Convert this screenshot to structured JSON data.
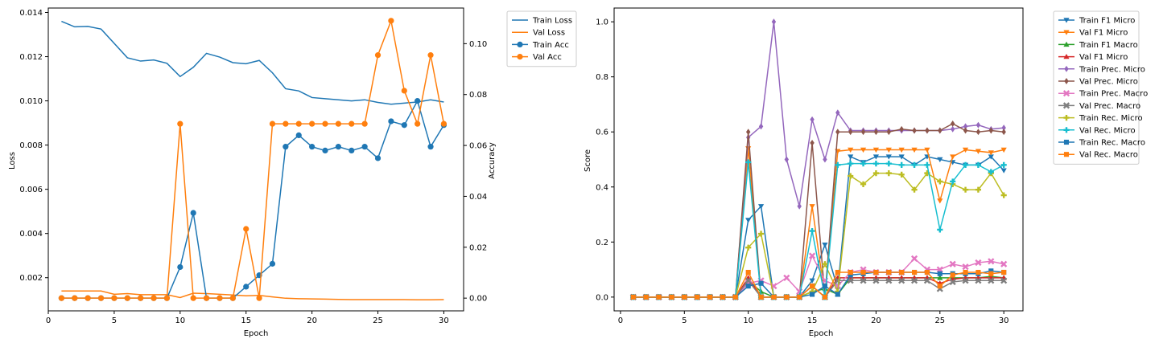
{
  "chart_data": [
    {
      "type": "line",
      "title": "",
      "xlabel": "Epoch",
      "ylabel": "Loss",
      "ylabel_right": "Accuracy",
      "xlim": [
        0.0,
        31.5
      ],
      "ylim": [
        0.0005,
        0.0142
      ],
      "ylim_right": [
        -0.005,
        0.114
      ],
      "x_ticks": [
        0,
        5,
        10,
        15,
        20,
        25,
        30
      ],
      "y_ticks": [
        0.002,
        0.004,
        0.006,
        0.008,
        0.01,
        0.012,
        0.014
      ],
      "y_ticks_right": [
        0.0,
        0.02,
        0.04,
        0.06,
        0.08,
        0.1
      ],
      "grid": false,
      "legend_placement": "outside-top-right",
      "x": [
        1,
        2,
        3,
        4,
        5,
        6,
        7,
        8,
        9,
        10,
        11,
        12,
        13,
        14,
        15,
        16,
        17,
        18,
        19,
        20,
        21,
        22,
        23,
        24,
        25,
        26,
        27,
        28,
        29,
        30
      ],
      "series": [
        {
          "name": "Train Loss",
          "axis": "left",
          "marker": "none",
          "color": "#1f77b4",
          "values": [
            0.0136,
            0.01335,
            0.01337,
            0.01325,
            0.0126,
            0.01195,
            0.0118,
            0.01185,
            0.0117,
            0.0111,
            0.01152,
            0.01215,
            0.01198,
            0.01173,
            0.01168,
            0.01183,
            0.01127,
            0.01055,
            0.01045,
            0.01015,
            0.0101,
            0.01005,
            0.01,
            0.01005,
            0.00993,
            0.00985,
            0.0099,
            0.00995,
            0.01005,
            0.00995
          ]
        },
        {
          "name": "Val Loss",
          "axis": "left",
          "marker": "none",
          "color": "#ff7f0e",
          "values": [
            0.0014,
            0.0014,
            0.0014,
            0.0014,
            0.00125,
            0.00128,
            0.00123,
            0.00123,
            0.00123,
            0.0011,
            0.0013,
            0.00128,
            0.00125,
            0.00122,
            0.00118,
            0.0012,
            0.00113,
            0.00107,
            0.00105,
            0.00104,
            0.00103,
            0.00102,
            0.00101,
            0.00101,
            0.00101,
            0.00101,
            0.00101,
            0.001,
            0.001,
            0.00101
          ]
        },
        {
          "name": "Train Acc",
          "axis": "right",
          "marker": "circle",
          "color": "#1f77b4",
          "values": [
            0,
            0,
            0,
            0,
            0,
            0,
            0,
            0,
            0,
            0.0122,
            0.0335,
            0,
            0,
            0,
            0.0045,
            0.009,
            0.0135,
            0.0595,
            0.064,
            0.0595,
            0.058,
            0.0595,
            0.058,
            0.0595,
            0.055,
            0.0695,
            0.068,
            0.0775,
            0.0595,
            0.068
          ]
        },
        {
          "name": "Val Acc",
          "axis": "right",
          "marker": "circle",
          "color": "#ff7f0e",
          "values": [
            0,
            0,
            0,
            0,
            0,
            0,
            0,
            0,
            0,
            0.0685,
            0,
            0,
            0,
            0,
            0.0272,
            0,
            0.0685,
            0.0685,
            0.0685,
            0.0685,
            0.0685,
            0.0685,
            0.0685,
            0.0685,
            0.0955,
            0.109,
            0.0815,
            0.0685,
            0.0955,
            0.0685
          ]
        }
      ]
    },
    {
      "type": "line",
      "title": "",
      "xlabel": "Epoch",
      "ylabel": "Score",
      "xlim": [
        -0.5,
        31.5
      ],
      "ylim": [
        -0.05,
        1.05
      ],
      "x_ticks": [
        0,
        5,
        10,
        15,
        20,
        25,
        30
      ],
      "y_ticks": [
        0.0,
        0.2,
        0.4,
        0.6,
        0.8,
        1.0
      ],
      "grid": false,
      "legend_placement": "outside-top-right",
      "x": [
        1,
        2,
        3,
        4,
        5,
        6,
        7,
        8,
        9,
        10,
        11,
        12,
        13,
        14,
        15,
        16,
        17,
        18,
        19,
        20,
        21,
        22,
        23,
        24,
        25,
        26,
        27,
        28,
        29,
        30
      ],
      "series": [
        {
          "name": "Train F1 Micro",
          "marker": "tri_down",
          "color": "#1f77b4",
          "values": [
            0,
            0,
            0,
            0,
            0,
            0,
            0,
            0,
            0,
            0.28,
            0.33,
            0,
            0,
            0,
            0.06,
            0.19,
            0.03,
            0.51,
            0.49,
            0.51,
            0.51,
            0.51,
            0.48,
            0.51,
            0.5,
            0.49,
            0.48,
            0.48,
            0.51,
            0.46
          ]
        },
        {
          "name": "Val F1 Micro",
          "marker": "tri_down",
          "color": "#ff7f0e",
          "values": [
            0,
            0,
            0,
            0,
            0,
            0,
            0,
            0,
            0,
            0.54,
            0,
            0,
            0,
            0,
            0.33,
            0,
            0.53,
            0.535,
            0.535,
            0.535,
            0.535,
            0.535,
            0.535,
            0.535,
            0.35,
            0.51,
            0.535,
            0.53,
            0.525,
            0.535
          ]
        },
        {
          "name": "Train F1 Macro",
          "marker": "tri_up",
          "color": "#2ca02c",
          "values": [
            0,
            0,
            0,
            0,
            0,
            0,
            0,
            0,
            0,
            0.06,
            0.02,
            0,
            0,
            0,
            0.02,
            0.03,
            0.01,
            0.07,
            0.07,
            0.07,
            0.07,
            0.07,
            0.07,
            0.07,
            0.07,
            0.07,
            0.07,
            0.07,
            0.075,
            0.07
          ]
        },
        {
          "name": "Val F1 Micro",
          "marker": "tri_up",
          "color": "#d62728",
          "values": [
            0,
            0,
            0,
            0,
            0,
            0,
            0,
            0,
            0,
            0.07,
            0,
            0,
            0,
            0,
            0.04,
            0,
            0.07,
            0.07,
            0.07,
            0.07,
            0.07,
            0.07,
            0.07,
            0.07,
            0.05,
            0.065,
            0.07,
            0.07,
            0.07,
            0.07
          ]
        },
        {
          "name": "Train Prec. Micro",
          "marker": "diamond",
          "color": "#9467bd",
          "values": [
            0,
            0,
            0,
            0,
            0,
            0,
            0,
            0,
            0,
            0.58,
            0.62,
            1.0,
            0.5,
            0.33,
            0.645,
            0.5,
            0.67,
            0.605,
            0.605,
            0.605,
            0.605,
            0.605,
            0.605,
            0.605,
            0.605,
            0.61,
            0.62,
            0.625,
            0.61,
            0.615
          ]
        },
        {
          "name": "Val Prec. Micro",
          "marker": "diamond",
          "color": "#8c564b",
          "values": [
            0,
            0,
            0,
            0,
            0,
            0,
            0,
            0,
            0,
            0.6,
            0,
            0,
            0,
            0,
            0.56,
            0,
            0.6,
            0.6,
            0.6,
            0.6,
            0.6,
            0.61,
            0.605,
            0.605,
            0.605,
            0.63,
            0.605,
            0.6,
            0.605,
            0.6
          ]
        },
        {
          "name": "Train Prec. Macro",
          "marker": "x",
          "color": "#e377c2",
          "values": [
            0,
            0,
            0,
            0,
            0,
            0,
            0,
            0,
            0,
            0.05,
            0.06,
            0.04,
            0.07,
            0.02,
            0.15,
            0.06,
            0.04,
            0.09,
            0.1,
            0.09,
            0.09,
            0.09,
            0.14,
            0.1,
            0.1,
            0.12,
            0.11,
            0.125,
            0.13,
            0.12
          ]
        },
        {
          "name": "Val Prec. Macro",
          "marker": "x",
          "color": "#7f7f7f",
          "values": [
            0,
            0,
            0,
            0,
            0,
            0,
            0,
            0,
            0,
            0.06,
            0,
            0,
            0,
            0,
            0.04,
            0,
            0.06,
            0.06,
            0.06,
            0.06,
            0.06,
            0.06,
            0.06,
            0.06,
            0.03,
            0.055,
            0.06,
            0.06,
            0.06,
            0.06
          ]
        },
        {
          "name": "Train Rec. Micro",
          "marker": "plus",
          "color": "#bcbd22",
          "values": [
            0,
            0,
            0,
            0,
            0,
            0,
            0,
            0,
            0,
            0.18,
            0.23,
            0,
            0,
            0,
            0.02,
            0.12,
            0.02,
            0.44,
            0.41,
            0.45,
            0.45,
            0.445,
            0.39,
            0.45,
            0.42,
            0.41,
            0.39,
            0.39,
            0.45,
            0.37
          ]
        },
        {
          "name": "Val Rec. Micro",
          "marker": "plus",
          "color": "#17becf",
          "values": [
            0,
            0,
            0,
            0,
            0,
            0,
            0,
            0,
            0,
            0.49,
            0,
            0,
            0,
            0,
            0.24,
            0,
            0.48,
            0.485,
            0.485,
            0.485,
            0.485,
            0.48,
            0.48,
            0.48,
            0.245,
            0.42,
            0.48,
            0.48,
            0.455,
            0.48
          ]
        },
        {
          "name": "Train Rec. Macro",
          "marker": "square",
          "color": "#1f77b4",
          "values": [
            0,
            0,
            0,
            0,
            0,
            0,
            0,
            0,
            0,
            0.04,
            0.05,
            0,
            0,
            0,
            0.01,
            0.04,
            0.01,
            0.08,
            0.085,
            0.09,
            0.09,
            0.09,
            0.09,
            0.09,
            0.085,
            0.085,
            0.085,
            0.085,
            0.095,
            0.09
          ]
        },
        {
          "name": "Val Rec. Macro",
          "marker": "square",
          "color": "#ff7f0e",
          "values": [
            0,
            0,
            0,
            0,
            0,
            0,
            0,
            0,
            0,
            0.09,
            0,
            0,
            0,
            0,
            0.04,
            0,
            0.09,
            0.09,
            0.09,
            0.09,
            0.09,
            0.09,
            0.09,
            0.09,
            0.04,
            0.08,
            0.09,
            0.09,
            0.085,
            0.09
          ]
        }
      ]
    }
  ]
}
